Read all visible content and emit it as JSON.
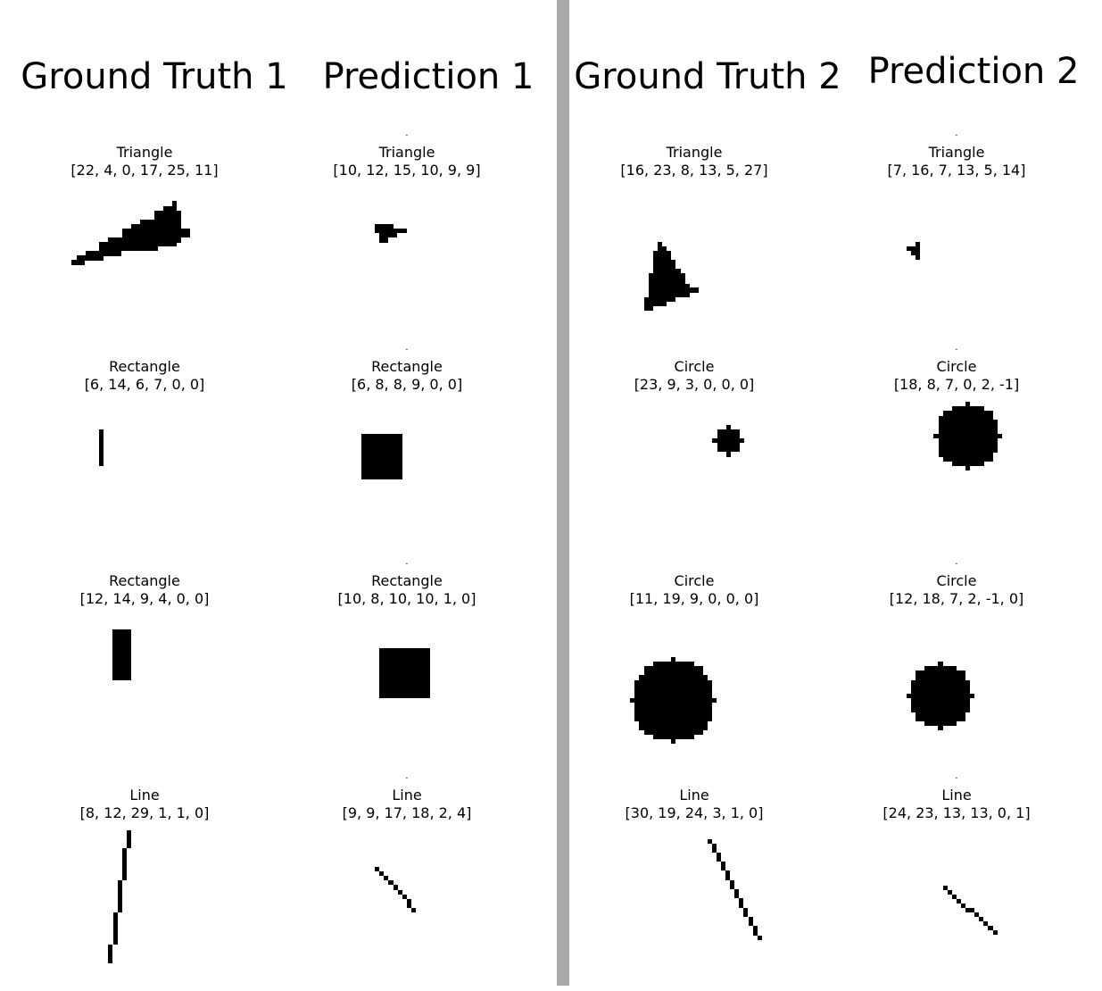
{
  "headers": {
    "gt1": "Ground Truth 1",
    "pred1": "Prediction 1",
    "gt2": "Ground Truth 2",
    "pred2": "Prediction 2"
  },
  "panels": {
    "gt1": [
      {
        "shape": "Triangle",
        "params": "[22, 4, 0, 17, 25, 11]"
      },
      {
        "shape": "Rectangle",
        "params": "[6, 14, 6, 7, 0, 0]"
      },
      {
        "shape": "Rectangle",
        "params": "[12, 14, 9, 4, 0, 0]"
      },
      {
        "shape": "Line",
        "params": "[8, 12, 29, 1, 1, 0]"
      }
    ],
    "pred1": [
      {
        "shape": "Triangle",
        "params": "[10, 12, 15, 10, 9, 9]"
      },
      {
        "shape": "Rectangle",
        "params": "[6, 8, 8, 9, 0, 0]"
      },
      {
        "shape": "Rectangle",
        "params": "[10, 8, 10, 10, 1, 0]"
      },
      {
        "shape": "Line",
        "params": "[9, 9, 17, 18, 2, 4]"
      }
    ],
    "gt2": [
      {
        "shape": "Triangle",
        "params": "[16, 23, 8, 13, 5, 27]"
      },
      {
        "shape": "Circle",
        "params": "[23, 9, 3, 0, 0, 0]"
      },
      {
        "shape": "Circle",
        "params": "[11, 19, 9, 0, 0, 0]"
      },
      {
        "shape": "Line",
        "params": "[30, 19, 24, 3, 1, 0]"
      }
    ],
    "pred2": [
      {
        "shape": "Triangle",
        "params": "[7, 16, 7, 13, 5, 14]"
      },
      {
        "shape": "Circle",
        "params": "[18, 8, 7, 0, 2, -1]"
      },
      {
        "shape": "Circle",
        "params": "[12, 18, 7, 2, -1, 0]"
      },
      {
        "shape": "Line",
        "params": "[24, 23, 13, 13, 0, 1]"
      }
    ]
  },
  "colors": {
    "shape": "#000000",
    "divider": "#a9a9a9",
    "background": "#ffffff"
  }
}
